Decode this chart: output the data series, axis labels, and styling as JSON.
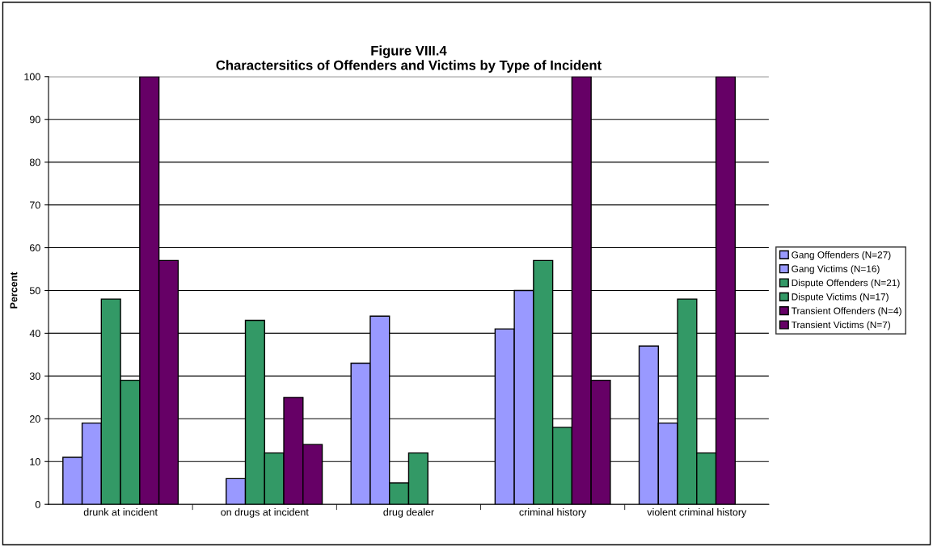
{
  "chart_data": {
    "type": "bar",
    "title": "Figure VIII.4\nCharactersitics of Offenders and Victims by Type of Incident",
    "ylabel": "Percent",
    "categories": [
      "drunk at incident",
      "on drugs at incident",
      "drug dealer",
      "criminal history",
      "violent criminal history"
    ],
    "series": [
      {
        "name": "Gang Offenders (N=27)",
        "color": "#9999ff",
        "values": [
          11,
          0,
          33,
          41,
          37
        ]
      },
      {
        "name": "Gang Victims (N=16)",
        "color": "#9999ff",
        "values": [
          19,
          6,
          44,
          50,
          19
        ]
      },
      {
        "name": "Dispute Offenders (N=21)",
        "color": "#339966",
        "values": [
          48,
          43,
          5,
          57,
          48
        ]
      },
      {
        "name": "Dispute Victims (N=17)",
        "color": "#339966",
        "values": [
          29,
          12,
          12,
          18,
          12
        ]
      },
      {
        "name": "Transient Offenders (N=4)",
        "color": "#660066",
        "values": [
          100,
          25,
          0,
          100,
          100
        ]
      },
      {
        "name": "Transient Victims (N=7)",
        "color": "#660066",
        "values": [
          57,
          14,
          0,
          29,
          0
        ]
      }
    ],
    "ylim": [
      0,
      100
    ],
    "yticks": [
      0,
      10,
      20,
      30,
      40,
      50,
      60,
      70,
      80,
      90,
      100
    ],
    "grid": "y",
    "legend": "right"
  }
}
